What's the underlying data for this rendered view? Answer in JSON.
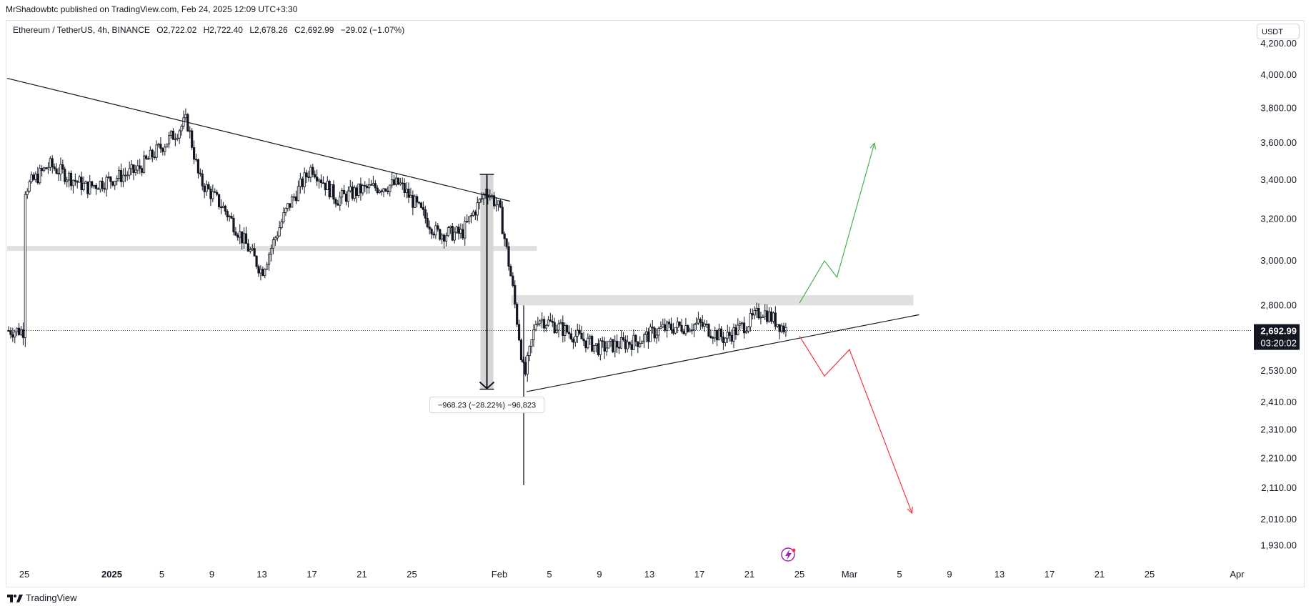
{
  "header": {
    "published": "MrShadowbtc published on TradingView.com, Feb 24, 2025 12:09 UTC+3:30"
  },
  "legend": {
    "symbol": "Ethereum / TetherUS, 4h, BINANCE",
    "open": "O2,722.02",
    "high": "H2,722.40",
    "low": "L2,678.26",
    "close": "C2,692.99",
    "change": "−29.02 (−1.07%)"
  },
  "price_axis": {
    "currency": "USDT",
    "labels": [
      "4,200.00",
      "4,000.00",
      "3,800.00",
      "3,600.00",
      "3,400.00",
      "3,200.00",
      "3,000.00",
      "2,800.00",
      "2,530.00",
      "2,410.00",
      "2,310.00",
      "2,210.00",
      "2,110.00",
      "2,010.00",
      "1,930.00"
    ],
    "current_price": "2,692.99",
    "countdown": "03:20:02"
  },
  "time_axis": {
    "labels": [
      "25",
      "2025",
      "5",
      "9",
      "13",
      "17",
      "21",
      "25",
      "Feb",
      "5",
      "9",
      "13",
      "17",
      "21",
      "25",
      "Mar",
      "5",
      "9",
      "13",
      "17",
      "21",
      "25",
      "Apr"
    ]
  },
  "measure_label": "−968.23 (−28.22%) −96,823",
  "footer": {
    "brand": "TradingView"
  },
  "colors": {
    "candle": "#131722",
    "trendline": "#131722",
    "zone": "#e0e0e0",
    "bull_arrow": "#4caf50",
    "bear_arrow": "#f23645",
    "badge_bg": "#131722",
    "lightning": "#9c27b0"
  },
  "chart_data": {
    "type": "candlestick",
    "symbol": "Ethereum / TetherUS",
    "interval": "4h",
    "exchange": "BINANCE",
    "scale": "log",
    "last_close": 2692.99,
    "ylim": [
      1900,
      4250
    ],
    "price_path": [
      {
        "date": "2024-12-25",
        "price": 3350
      },
      {
        "date": "2024-12-27",
        "price": 3480
      },
      {
        "date": "2024-12-30",
        "price": 3360
      },
      {
        "date": "2025-01-03",
        "price": 3450
      },
      {
        "date": "2025-01-06",
        "price": 3650
      },
      {
        "date": "2025-01-07",
        "price": 3730
      },
      {
        "date": "2025-01-08",
        "price": 3400
      },
      {
        "date": "2025-01-10",
        "price": 3250
      },
      {
        "date": "2025-01-13",
        "price": 2950
      },
      {
        "date": "2025-01-15",
        "price": 3250
      },
      {
        "date": "2025-01-17",
        "price": 3470
      },
      {
        "date": "2025-01-19",
        "price": 3300
      },
      {
        "date": "2025-01-21",
        "price": 3350
      },
      {
        "date": "2025-01-24",
        "price": 3380
      },
      {
        "date": "2025-01-27",
        "price": 3130
      },
      {
        "date": "2025-01-29",
        "price": 3130
      },
      {
        "date": "2025-01-31",
        "price": 3350
      },
      {
        "date": "2025-02-01",
        "price": 3250
      },
      {
        "date": "2025-02-02",
        "price": 2900
      },
      {
        "date": "2025-02-03",
        "price": 2500
      },
      {
        "date": "2025-02-04",
        "price": 2750
      },
      {
        "date": "2025-02-06",
        "price": 2700
      },
      {
        "date": "2025-02-09",
        "price": 2620
      },
      {
        "date": "2025-02-12",
        "price": 2650
      },
      {
        "date": "2025-02-14",
        "price": 2700
      },
      {
        "date": "2025-02-17",
        "price": 2720
      },
      {
        "date": "2025-02-19",
        "price": 2660
      },
      {
        "date": "2025-02-21",
        "price": 2730
      },
      {
        "date": "2025-02-22",
        "price": 2780
      },
      {
        "date": "2025-02-24",
        "price": 2693
      }
    ],
    "wicks": [
      {
        "date": "2025-02-03",
        "low": 2120,
        "high": 2800
      }
    ],
    "drawings": {
      "descending_trendline": [
        {
          "date": "2024-12-22",
          "price": 3980
        },
        {
          "date": "2025-02-01",
          "price": 3290
        }
      ],
      "ascending_trendline": [
        {
          "date": "2025-02-03",
          "price": 2450
        },
        {
          "date": "2025-03-06",
          "price": 2760
        }
      ],
      "support_zone_old": {
        "from": "2024-12-22",
        "to": "2025-02-04",
        "price": 3060
      },
      "resistance_zone": {
        "from": "2025-02-02",
        "to": "2025-03-06",
        "low": 2800,
        "high": 2845
      },
      "measure": {
        "date": "2025-01-31",
        "from": 3430,
        "to": 2462
      },
      "bull_path": [
        {
          "date": "2025-02-25",
          "price": 2810
        },
        {
          "date": "2025-02-27",
          "price": 3000
        },
        {
          "date": "2025-02-28",
          "price": 2925
        },
        {
          "date": "2025-03-03",
          "price": 3600
        }
      ],
      "bear_path": [
        {
          "date": "2025-02-25",
          "price": 2670
        },
        {
          "date": "2025-02-27",
          "price": 2510
        },
        {
          "date": "2025-03-01",
          "price": 2615
        },
        {
          "date": "2025-03-06",
          "price": 2030
        }
      ]
    }
  }
}
